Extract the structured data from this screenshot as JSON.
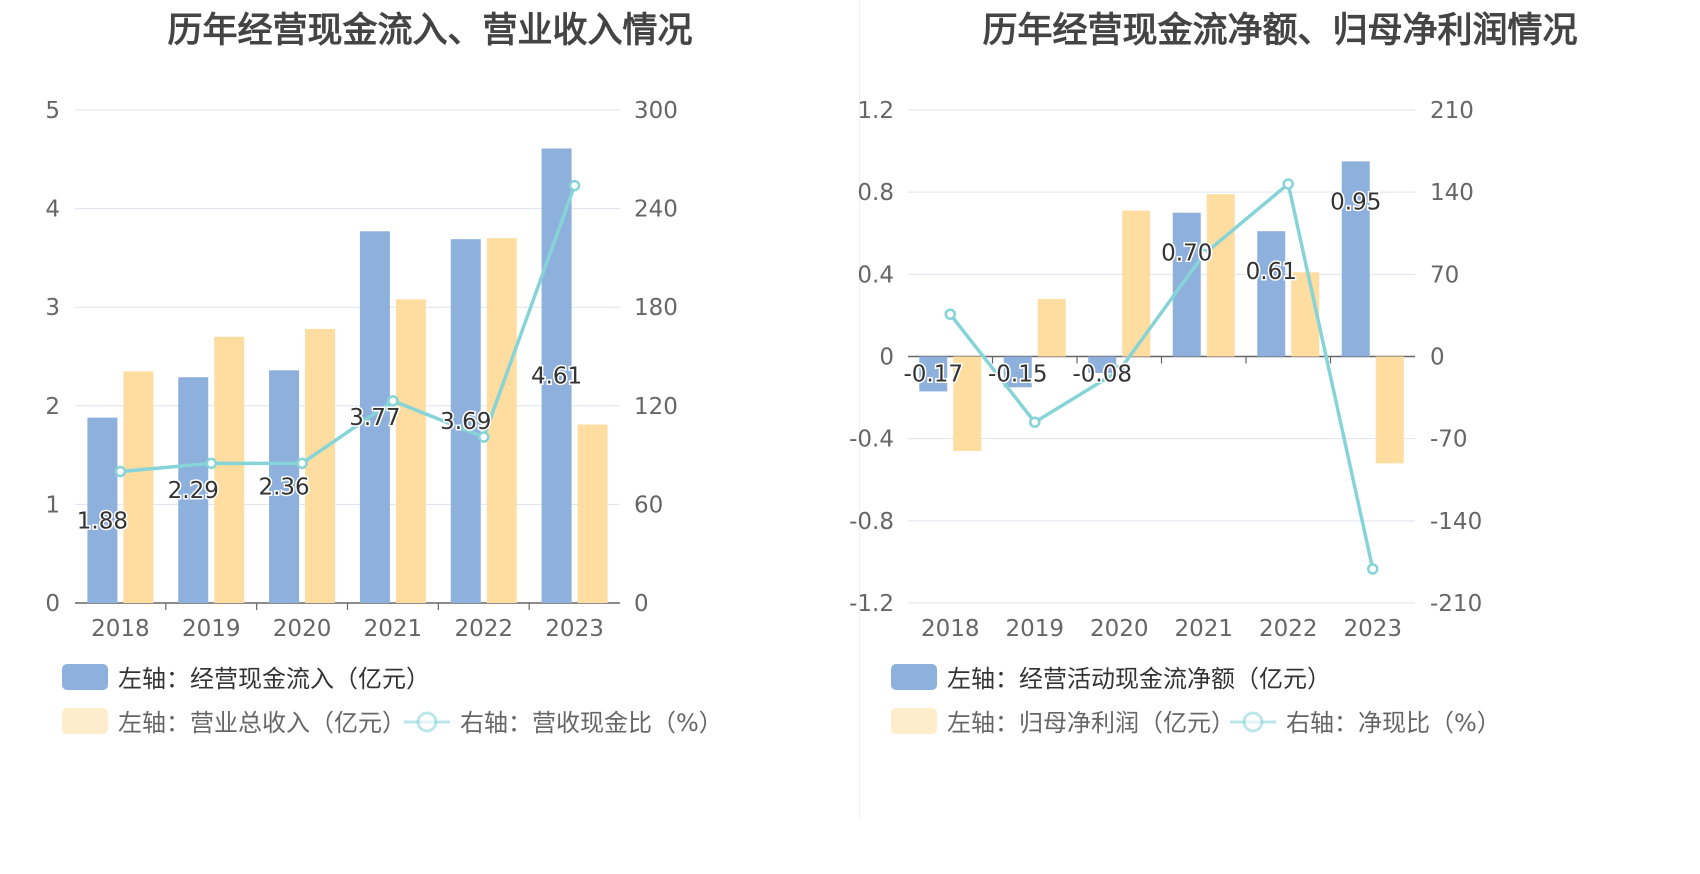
{
  "colors": {
    "bar_a": "#8eb0dc",
    "bar_b": "#ffdca0",
    "line": "#86d4d8",
    "grid": "#dfe3ef",
    "axis": "#666666"
  },
  "chart_data": [
    {
      "type": "bar",
      "title": "历年经营现金流入、营业收入情况",
      "categories": [
        "2018",
        "2019",
        "2020",
        "2021",
        "2022",
        "2023"
      ],
      "ylim_left": [
        0,
        5
      ],
      "yticks_left": [
        "0",
        "1",
        "2",
        "3",
        "4",
        "5"
      ],
      "ylim_right": [
        0,
        300
      ],
      "yticks_right": [
        "0",
        "60",
        "120",
        "180",
        "240",
        "300"
      ],
      "grid": true,
      "legend_position": "bottom",
      "series": [
        {
          "name": "左轴：经营现金流入（亿元）",
          "axis": "left",
          "kind": "bar",
          "values": [
            1.88,
            2.29,
            2.36,
            3.77,
            3.69,
            4.61
          ],
          "labels": [
            "1.88",
            "2.29",
            "2.36",
            "3.77",
            "3.69",
            "4.61"
          ]
        },
        {
          "name": "左轴：营业总收入（亿元）",
          "axis": "left",
          "kind": "bar",
          "values": [
            2.35,
            2.7,
            2.78,
            3.08,
            3.7,
            1.81
          ]
        },
        {
          "name": "右轴：营收现金比（%）",
          "axis": "right",
          "kind": "line",
          "values": [
            80,
            85,
            85,
            123,
            101,
            254
          ]
        }
      ]
    },
    {
      "type": "bar",
      "title": "历年经营现金流净额、归母净利润情况",
      "categories": [
        "2018",
        "2019",
        "2020",
        "2021",
        "2022",
        "2023"
      ],
      "ylim_left": [
        -1.2,
        1.2
      ],
      "yticks_left": [
        "-1.2",
        "-0.8",
        "-0.4",
        "0",
        "0.4",
        "0.8",
        "1.2"
      ],
      "ylim_right": [
        -210,
        210
      ],
      "yticks_right": [
        "-210",
        "-140",
        "-70",
        "0",
        "70",
        "140",
        "210"
      ],
      "grid": true,
      "legend_position": "bottom",
      "series": [
        {
          "name": "左轴：经营活动现金流净额（亿元）",
          "axis": "left",
          "kind": "bar",
          "values": [
            -0.17,
            -0.15,
            -0.08,
            0.7,
            0.61,
            0.95
          ],
          "labels": [
            "-0.17",
            "-0.15",
            "-0.08",
            "0.70",
            "0.61",
            "0.95"
          ]
        },
        {
          "name": "左轴：归母净利润（亿元）",
          "axis": "left",
          "kind": "bar",
          "values": [
            -0.46,
            0.28,
            0.71,
            0.79,
            0.41,
            -0.52
          ]
        },
        {
          "name": "右轴：净现比（%）",
          "axis": "right",
          "kind": "line",
          "values": [
            36,
            -56,
            -12,
            87,
            147,
            -181
          ]
        }
      ]
    }
  ]
}
